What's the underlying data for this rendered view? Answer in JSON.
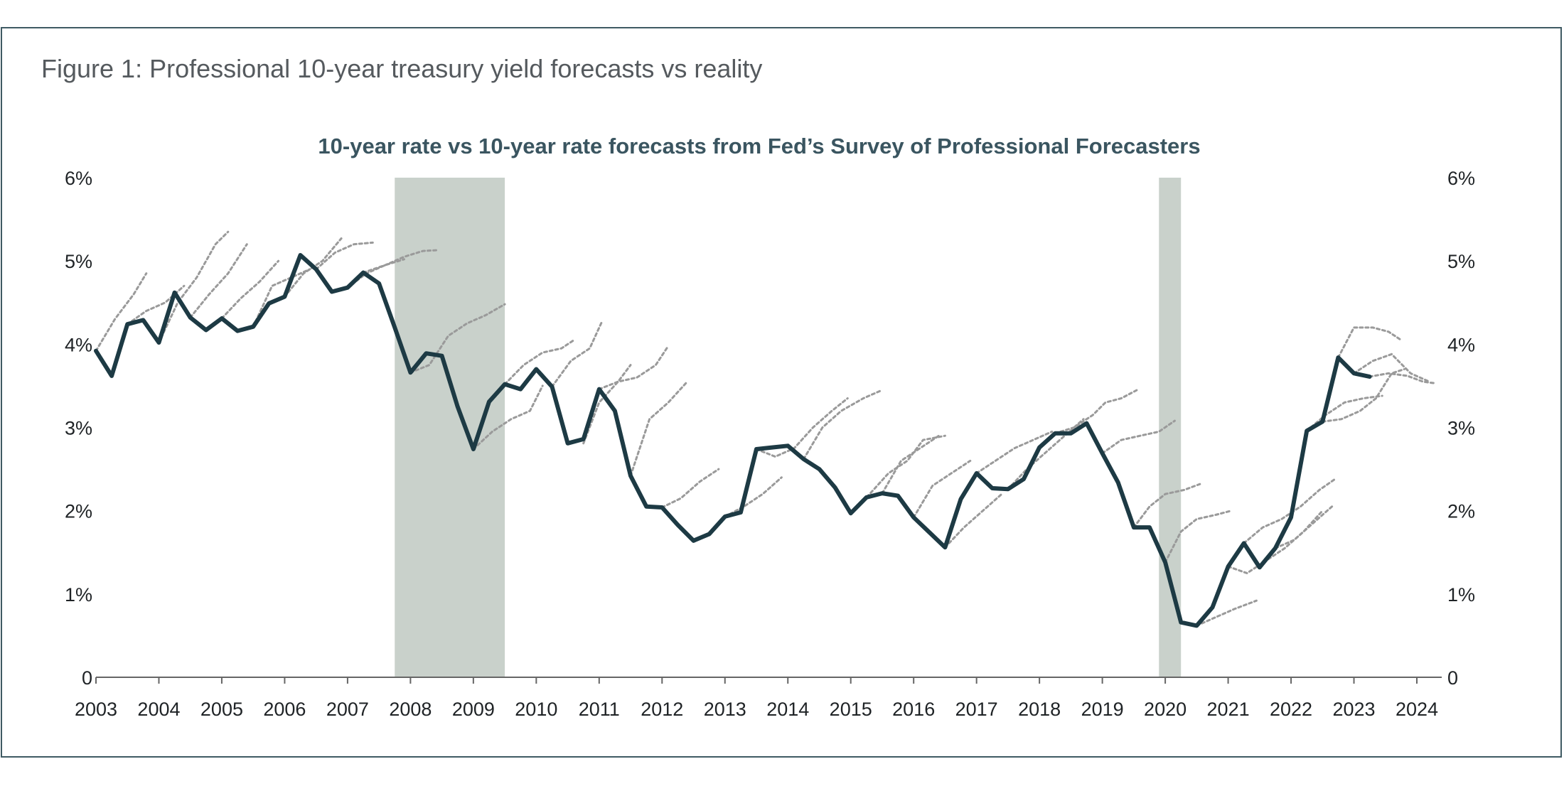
{
  "figure_title": "Figure 1: Professional 10-year treasury yield forecasts vs reality",
  "colors": {
    "actual_line": "#1d3a44",
    "forecast_line": "#9a9a9a",
    "recession_band": "#c9d1cb",
    "axis": "#666666",
    "frame": "#3f5a63"
  },
  "chart_data": {
    "type": "line",
    "title": "10-year rate vs 10-year rate forecasts from Fed’s Survey of Professional Forecasters",
    "xlabel": "",
    "ylabel": "",
    "xlim": [
      2003.0,
      2024.4
    ],
    "ylim": [
      0,
      6
    ],
    "y_ticks": [
      0,
      1,
      2,
      3,
      4,
      5,
      6
    ],
    "y_tick_labels": [
      "0",
      "1%",
      "2%",
      "3%",
      "4%",
      "5%",
      "6%"
    ],
    "x_ticks": [
      2003,
      2004,
      2005,
      2006,
      2007,
      2008,
      2009,
      2010,
      2011,
      2012,
      2013,
      2014,
      2015,
      2016,
      2017,
      2018,
      2019,
      2020,
      2021,
      2022,
      2023,
      2024
    ],
    "x_tick_labels": [
      "2003",
      "2004",
      "2005",
      "2006",
      "2007",
      "2008",
      "2009",
      "2010",
      "2011",
      "2012",
      "2013",
      "2014",
      "2015",
      "2016",
      "2017",
      "2018",
      "2019",
      "2020",
      "2021",
      "2022",
      "2023",
      "2024"
    ],
    "grid": false,
    "legend": "none",
    "secondary_y_axis": true,
    "recessions": [
      {
        "start": 2007.75,
        "end": 2009.5
      },
      {
        "start": 2019.9,
        "end": 2020.25
      }
    ],
    "series": [
      {
        "role": "actual",
        "x": [
          2003.0,
          2003.25,
          2003.5,
          2003.75,
          2004.0,
          2004.25,
          2004.5,
          2004.75,
          2005.0,
          2005.25,
          2005.5,
          2005.75,
          2006.0,
          2006.25,
          2006.5,
          2006.75,
          2007.0,
          2007.25,
          2007.5,
          2007.75,
          2008.0,
          2008.25,
          2008.5,
          2008.75,
          2009.0,
          2009.25,
          2009.5,
          2009.75,
          2010.0,
          2010.25,
          2010.5,
          2010.75,
          2011.0,
          2011.25,
          2011.5,
          2011.75,
          2012.0,
          2012.25,
          2012.5,
          2012.75,
          2013.0,
          2013.25,
          2013.5,
          2013.75,
          2014.0,
          2014.25,
          2014.5,
          2014.75,
          2015.0,
          2015.25,
          2015.5,
          2015.75,
          2016.0,
          2016.25,
          2016.5,
          2016.75,
          2017.0,
          2017.25,
          2017.5,
          2017.75,
          2018.0,
          2018.25,
          2018.5,
          2018.75,
          2019.0,
          2019.25,
          2019.5,
          2019.75,
          2020.0,
          2020.25,
          2020.5,
          2020.75,
          2021.0,
          2021.25,
          2021.5,
          2021.75,
          2022.0,
          2022.25,
          2022.5,
          2022.75,
          2023.0,
          2023.25
        ],
        "values": [
          3.92,
          3.62,
          4.24,
          4.29,
          4.02,
          4.62,
          4.32,
          4.17,
          4.31,
          4.16,
          4.21,
          4.49,
          4.57,
          5.07,
          4.9,
          4.63,
          4.68,
          4.86,
          4.73,
          4.2,
          3.66,
          3.89,
          3.86,
          3.25,
          2.74,
          3.31,
          3.52,
          3.46,
          3.7,
          3.49,
          2.81,
          2.86,
          3.46,
          3.2,
          2.42,
          2.05,
          2.04,
          1.83,
          1.64,
          1.72,
          1.93,
          1.98,
          2.74,
          2.76,
          2.78,
          2.62,
          2.5,
          2.28,
          1.97,
          2.16,
          2.21,
          2.18,
          1.92,
          1.74,
          1.56,
          2.14,
          2.45,
          2.27,
          2.26,
          2.38,
          2.76,
          2.93,
          2.93,
          3.05,
          2.69,
          2.34,
          1.8,
          1.8,
          1.38,
          0.66,
          0.62,
          0.84,
          1.33,
          1.61,
          1.32,
          1.55,
          1.92,
          2.96,
          3.07,
          3.84,
          3.65,
          3.61
        ]
      },
      {
        "role": "forecast",
        "x": [
          2003.0,
          2003.3,
          2003.6,
          2003.8
        ],
        "values": [
          3.92,
          4.3,
          4.6,
          4.85
        ]
      },
      {
        "role": "forecast",
        "x": [
          2003.5,
          2003.8,
          2004.1,
          2004.4
        ],
        "values": [
          4.24,
          4.4,
          4.5,
          4.7
        ]
      },
      {
        "role": "forecast",
        "x": [
          2004.0,
          2004.3,
          2004.6,
          2004.9,
          2005.1
        ],
        "values": [
          4.02,
          4.5,
          4.8,
          5.2,
          5.35
        ]
      },
      {
        "role": "forecast",
        "x": [
          2004.5,
          2004.8,
          2005.1,
          2005.4
        ],
        "values": [
          4.32,
          4.6,
          4.85,
          5.2
        ]
      },
      {
        "role": "forecast",
        "x": [
          2005.0,
          2005.3,
          2005.6,
          2005.9
        ],
        "values": [
          4.31,
          4.55,
          4.75,
          5.0
        ]
      },
      {
        "role": "forecast",
        "x": [
          2005.5,
          2005.8,
          2006.1,
          2006.4
        ],
        "values": [
          4.21,
          4.7,
          4.8,
          4.9
        ]
      },
      {
        "role": "forecast",
        "x": [
          2006.0,
          2006.3,
          2006.6,
          2006.9
        ],
        "values": [
          4.57,
          4.85,
          5.0,
          5.27
        ]
      },
      {
        "role": "forecast",
        "x": [
          2006.5,
          2006.8,
          2007.1,
          2007.4
        ],
        "values": [
          4.9,
          5.1,
          5.2,
          5.22
        ]
      },
      {
        "role": "forecast",
        "x": [
          2007.0,
          2007.3,
          2007.6,
          2007.9
        ],
        "values": [
          4.68,
          4.85,
          4.95,
          5.02
        ]
      },
      {
        "role": "forecast",
        "x": [
          2007.25,
          2007.6,
          2007.9,
          2008.2,
          2008.45
        ],
        "values": [
          4.86,
          4.95,
          5.05,
          5.12,
          5.13
        ]
      },
      {
        "role": "forecast",
        "x": [
          2008.0,
          2008.3,
          2008.6,
          2008.9,
          2009.2,
          2009.5
        ],
        "values": [
          3.66,
          3.75,
          4.1,
          4.25,
          4.35,
          4.48
        ]
      },
      {
        "role": "forecast",
        "x": [
          2009.0,
          2009.3,
          2009.6,
          2009.9,
          2010.1
        ],
        "values": [
          2.74,
          2.95,
          3.1,
          3.2,
          3.5
        ]
      },
      {
        "role": "forecast",
        "x": [
          2009.5,
          2009.8,
          2010.1,
          2010.4,
          2010.6
        ],
        "values": [
          3.52,
          3.75,
          3.9,
          3.95,
          4.05
        ]
      },
      {
        "role": "forecast",
        "x": [
          2010.25,
          2010.55,
          2010.85,
          2011.05
        ],
        "values": [
          3.49,
          3.8,
          3.95,
          4.28
        ]
      },
      {
        "role": "forecast",
        "x": [
          2010.75,
          2011.0,
          2011.3,
          2011.5
        ],
        "values": [
          2.81,
          3.3,
          3.55,
          3.75
        ]
      },
      {
        "role": "forecast",
        "x": [
          2011.0,
          2011.3,
          2011.6,
          2011.9,
          2012.1
        ],
        "values": [
          3.46,
          3.55,
          3.6,
          3.75,
          3.98
        ]
      },
      {
        "role": "forecast",
        "x": [
          2011.5,
          2011.8,
          2012.1,
          2012.4
        ],
        "values": [
          2.42,
          3.1,
          3.3,
          3.55
        ]
      },
      {
        "role": "forecast",
        "x": [
          2012.0,
          2012.3,
          2012.6,
          2012.9
        ],
        "values": [
          2.04,
          2.15,
          2.35,
          2.5
        ]
      },
      {
        "role": "forecast",
        "x": [
          2013.0,
          2013.3,
          2013.6,
          2013.9
        ],
        "values": [
          1.93,
          2.05,
          2.2,
          2.4
        ]
      },
      {
        "role": "forecast",
        "x": [
          2013.5,
          2013.8,
          2014.1,
          2014.4,
          2014.7,
          2014.95
        ],
        "values": [
          2.74,
          2.65,
          2.75,
          3.0,
          3.2,
          3.35
        ]
      },
      {
        "role": "forecast",
        "x": [
          2014.25,
          2014.55,
          2014.85,
          2015.2,
          2015.5
        ],
        "values": [
          2.62,
          3.0,
          3.2,
          3.35,
          3.45
        ]
      },
      {
        "role": "forecast",
        "x": [
          2015.0,
          2015.3,
          2015.6,
          2015.9,
          2016.15,
          2016.5
        ],
        "values": [
          1.97,
          2.2,
          2.45,
          2.6,
          2.85,
          2.9
        ]
      },
      {
        "role": "forecast",
        "x": [
          2015.5,
          2015.8,
          2016.1,
          2016.4
        ],
        "values": [
          2.21,
          2.6,
          2.75,
          2.9
        ]
      },
      {
        "role": "forecast",
        "x": [
          2016.5,
          2016.8,
          2017.1,
          2017.4
        ],
        "values": [
          1.56,
          1.8,
          2.0,
          2.2
        ]
      },
      {
        "role": "forecast",
        "x": [
          2016.0,
          2016.3,
          2016.6,
          2016.9
        ],
        "values": [
          1.92,
          2.3,
          2.45,
          2.6
        ]
      },
      {
        "role": "forecast",
        "x": [
          2017.0,
          2017.3,
          2017.6,
          2017.9,
          2018.2
        ],
        "values": [
          2.45,
          2.6,
          2.75,
          2.85,
          2.95
        ]
      },
      {
        "role": "forecast",
        "x": [
          2017.5,
          2017.8,
          2018.1,
          2018.4,
          2018.7
        ],
        "values": [
          2.26,
          2.5,
          2.7,
          2.9,
          3.1
        ]
      },
      {
        "role": "forecast",
        "x": [
          2018.25,
          2018.55,
          2018.85,
          2019.05,
          2019.3,
          2019.55
        ],
        "values": [
          2.93,
          3.0,
          3.15,
          3.3,
          3.35,
          3.45
        ]
      },
      {
        "role": "forecast",
        "x": [
          2019.0,
          2019.3,
          2019.6,
          2019.9,
          2020.15
        ],
        "values": [
          2.69,
          2.85,
          2.9,
          2.95,
          3.08
        ]
      },
      {
        "role": "forecast",
        "x": [
          2019.5,
          2019.75,
          2020.0,
          2020.3,
          2020.55
        ],
        "values": [
          1.8,
          2.05,
          2.2,
          2.25,
          2.32
        ]
      },
      {
        "role": "forecast",
        "x": [
          2020.0,
          2020.25,
          2020.5,
          2020.8,
          2021.05
        ],
        "values": [
          1.38,
          1.75,
          1.9,
          1.95,
          2.0
        ]
      },
      {
        "role": "forecast",
        "x": [
          2020.5,
          2020.8,
          2021.1,
          2021.45
        ],
        "values": [
          0.62,
          0.72,
          0.82,
          0.92
        ]
      },
      {
        "role": "forecast",
        "x": [
          2021.0,
          2021.3,
          2021.6,
          2021.9,
          2022.2,
          2022.5
        ],
        "values": [
          1.33,
          1.25,
          1.4,
          1.55,
          1.75,
          2.0
        ]
      },
      {
        "role": "forecast",
        "x": [
          2021.25,
          2021.55,
          2021.85,
          2022.15,
          2022.45,
          2022.7
        ],
        "values": [
          1.61,
          1.8,
          1.9,
          2.05,
          2.25,
          2.38
        ]
      },
      {
        "role": "forecast",
        "x": [
          2021.75,
          2022.05,
          2022.35,
          2022.65
        ],
        "values": [
          1.55,
          1.65,
          1.85,
          2.05
        ]
      },
      {
        "role": "forecast",
        "x": [
          2022.25,
          2022.55,
          2022.85,
          2023.15,
          2023.45
        ],
        "values": [
          2.96,
          3.15,
          3.3,
          3.35,
          3.38
        ]
      },
      {
        "role": "forecast",
        "x": [
          2022.5,
          2022.8,
          2023.1,
          2023.35,
          2023.6,
          2023.8
        ],
        "values": [
          3.07,
          3.1,
          3.2,
          3.35,
          3.65,
          3.7
        ]
      },
      {
        "role": "forecast",
        "x": [
          2022.75,
          2023.0,
          2023.3,
          2023.55,
          2023.75
        ],
        "values": [
          3.84,
          4.2,
          4.2,
          4.15,
          4.05
        ]
      },
      {
        "role": "forecast",
        "x": [
          2023.0,
          2023.3,
          2023.6,
          2023.9,
          2024.2
        ],
        "values": [
          3.65,
          3.8,
          3.88,
          3.65,
          3.55
        ]
      },
      {
        "role": "forecast",
        "x": [
          2023.25,
          2023.55,
          2023.85,
          2024.1,
          2024.3
        ],
        "values": [
          3.61,
          3.65,
          3.62,
          3.55,
          3.53
        ]
      }
    ]
  }
}
